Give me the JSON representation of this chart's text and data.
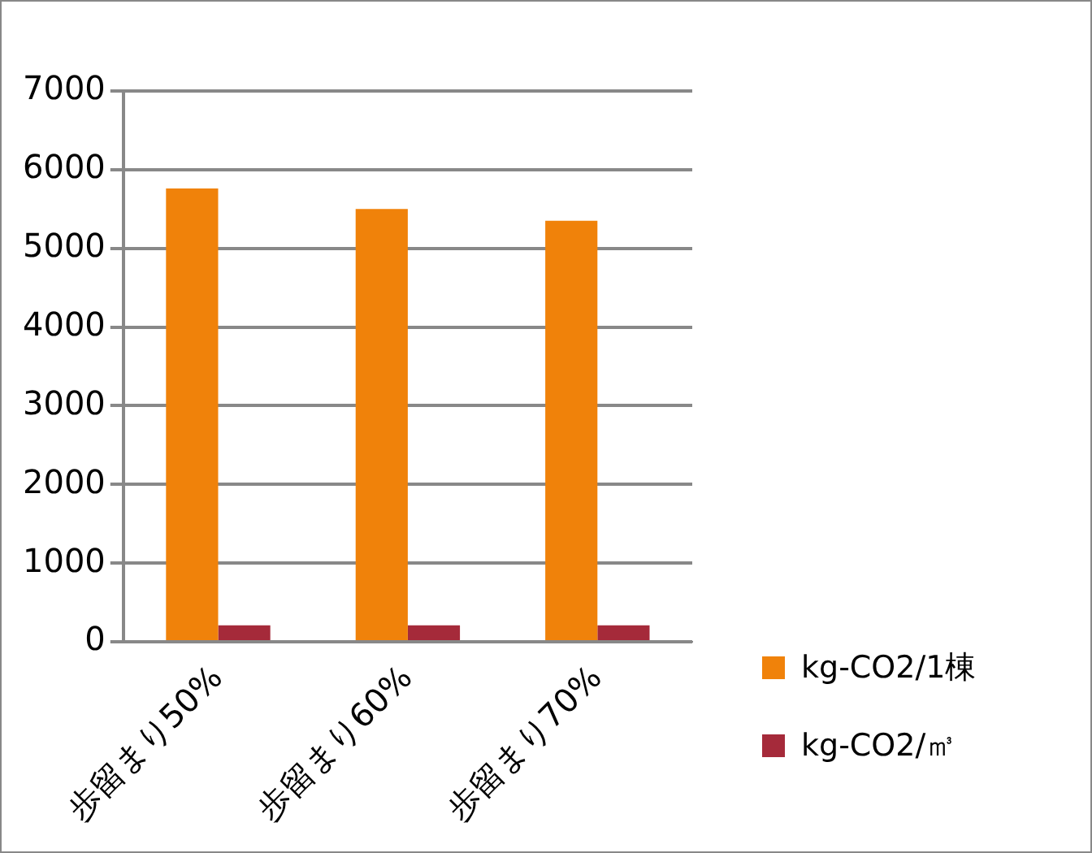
{
  "chart_data": {
    "type": "bar",
    "categories": [
      "歩留まり50%",
      "歩留まり60%",
      "歩留まり70%"
    ],
    "series": [
      {
        "name": "kg-CO2/1棟",
        "color": "#f0820a",
        "values": [
          5760,
          5500,
          5350
        ]
      },
      {
        "name": "kg-CO2/㎥",
        "color": "#a52a3a",
        "values": [
          210,
          210,
          210
        ]
      }
    ],
    "ylim": [
      0,
      7000
    ],
    "yticks": [
      0,
      1000,
      2000,
      3000,
      4000,
      5000,
      6000,
      7000
    ],
    "grid": "y",
    "legend": "right"
  }
}
